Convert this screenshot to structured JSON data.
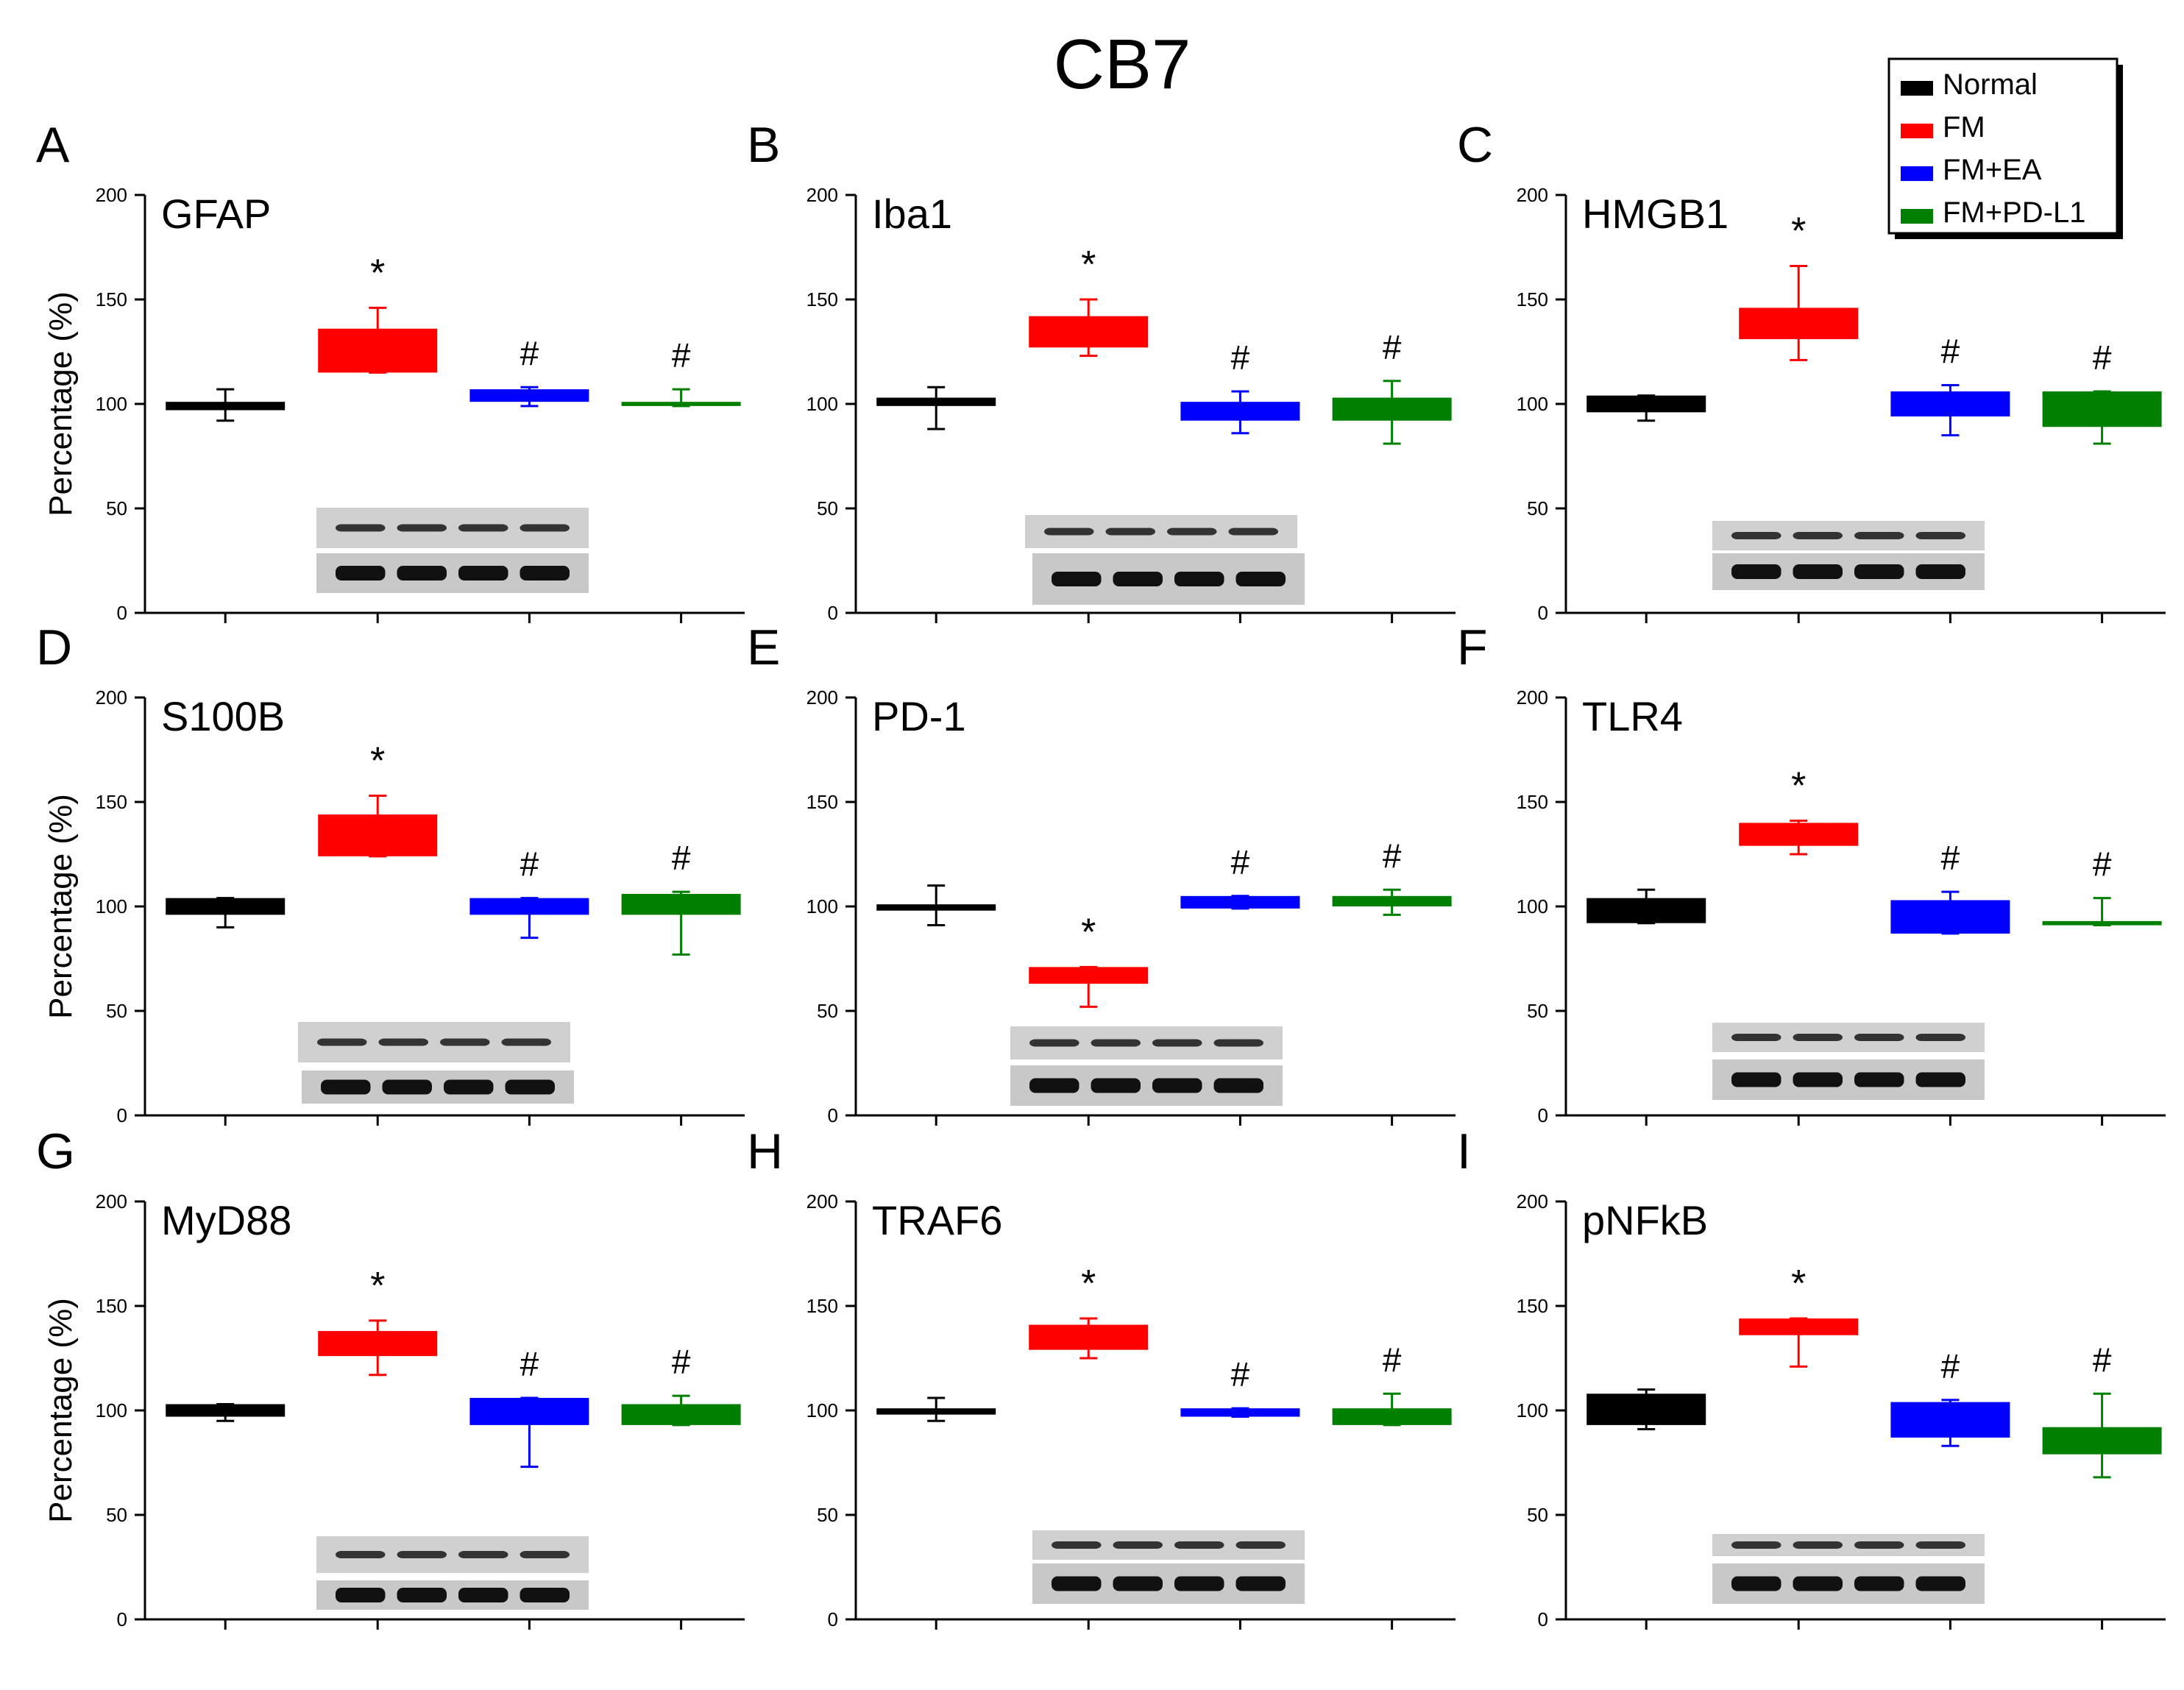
{
  "title": "CB7",
  "legend": {
    "placement": "top-right",
    "entries": [
      {
        "label": "Normal",
        "color": "#000000"
      },
      {
        "label": "FM",
        "color": "#ff0000"
      },
      {
        "label": "FM+EA",
        "color": "#0000ff"
      },
      {
        "label": "FM+PD-L1",
        "color": "#008000"
      }
    ]
  },
  "chart_data": [
    {
      "panel": "A",
      "type": "bar",
      "title": "GFAP",
      "ylabel": "Percentage (%)",
      "ylim": [
        0,
        200
      ],
      "yticks": [
        0,
        50,
        100,
        150,
        200
      ],
      "categories": [
        "Normal",
        "FM",
        "FM+EA",
        "FM+PD-L1"
      ],
      "values": [
        100,
        126,
        104,
        100
      ],
      "boxes": [
        [
          97,
          101
        ],
        [
          115,
          136
        ],
        [
          101,
          107
        ],
        [
          99,
          101
        ]
      ],
      "error_bars": [
        [
          92,
          107
        ],
        [
          115,
          146
        ],
        [
          99,
          108
        ],
        [
          99,
          107
        ]
      ],
      "markers": [
        "",
        "*",
        "#",
        "#"
      ]
    },
    {
      "panel": "B",
      "type": "bar",
      "title": "Iba1",
      "ylabel": "",
      "ylim": [
        0,
        200
      ],
      "yticks": [
        0,
        50,
        100,
        150,
        200
      ],
      "categories": [
        "Normal",
        "FM",
        "FM+EA",
        "FM+PD-L1"
      ],
      "values": [
        101,
        135,
        97,
        98
      ],
      "boxes": [
        [
          99,
          103
        ],
        [
          127,
          142
        ],
        [
          92,
          101
        ],
        [
          92,
          103
        ]
      ],
      "error_bars": [
        [
          88,
          108
        ],
        [
          123,
          150
        ],
        [
          86,
          106
        ],
        [
          81,
          111
        ]
      ],
      "markers": [
        "",
        "*",
        "#",
        "#"
      ]
    },
    {
      "panel": "C",
      "type": "bar",
      "title": "HMGB1",
      "ylabel": "",
      "ylim": [
        0,
        200
      ],
      "yticks": [
        0,
        50,
        100,
        150,
        200
      ],
      "categories": [
        "Normal",
        "FM",
        "FM+EA",
        "FM+PD-L1"
      ],
      "values": [
        100,
        139,
        100,
        98
      ],
      "boxes": [
        [
          96,
          104
        ],
        [
          131,
          146
        ],
        [
          94,
          106
        ],
        [
          89,
          106
        ]
      ],
      "error_bars": [
        [
          92,
          104
        ],
        [
          121,
          166
        ],
        [
          85,
          109
        ],
        [
          81,
          106
        ]
      ],
      "markers": [
        "",
        "*",
        "#",
        "#"
      ]
    },
    {
      "panel": "D",
      "type": "bar",
      "title": "S100B",
      "ylabel": "Percentage (%)",
      "ylim": [
        0,
        200
      ],
      "yticks": [
        0,
        50,
        100,
        150,
        200
      ],
      "categories": [
        "Normal",
        "FM",
        "FM+EA",
        "FM+PD-L1"
      ],
      "values": [
        100,
        134,
        100,
        101
      ],
      "boxes": [
        [
          96,
          104
        ],
        [
          124,
          144
        ],
        [
          96,
          104
        ],
        [
          96,
          106
        ]
      ],
      "error_bars": [
        [
          90,
          104
        ],
        [
          124,
          153
        ],
        [
          85,
          104
        ],
        [
          77,
          107
        ]
      ],
      "markers": [
        "",
        "*",
        "#",
        "#"
      ]
    },
    {
      "panel": "E",
      "type": "bar",
      "title": "PD-1",
      "ylabel": "",
      "ylim": [
        0,
        200
      ],
      "yticks": [
        0,
        50,
        100,
        150,
        200
      ],
      "categories": [
        "Normal",
        "FM",
        "FM+EA",
        "FM+PD-L1"
      ],
      "values": [
        100,
        67,
        102,
        103
      ],
      "boxes": [
        [
          98,
          101
        ],
        [
          63,
          71
        ],
        [
          99,
          105
        ],
        [
          100,
          105
        ]
      ],
      "error_bars": [
        [
          91,
          110
        ],
        [
          52,
          71
        ],
        [
          99,
          105
        ],
        [
          96,
          108
        ]
      ],
      "markers": [
        "",
        "*",
        "#",
        "#"
      ]
    },
    {
      "panel": "F",
      "type": "bar",
      "title": "TLR4",
      "ylabel": "",
      "ylim": [
        0,
        200
      ],
      "yticks": [
        0,
        50,
        100,
        150,
        200
      ],
      "categories": [
        "Normal",
        "FM",
        "FM+EA",
        "FM+PD-L1"
      ],
      "values": [
        99,
        135,
        95,
        92
      ],
      "boxes": [
        [
          92,
          104
        ],
        [
          129,
          140
        ],
        [
          87,
          103
        ],
        [
          91,
          93
        ]
      ],
      "error_bars": [
        [
          92,
          108
        ],
        [
          125,
          141
        ],
        [
          87,
          107
        ],
        [
          91,
          104
        ]
      ],
      "markers": [
        "",
        "*",
        "#",
        "#"
      ]
    },
    {
      "panel": "G",
      "type": "bar",
      "title": "MyD88",
      "ylabel": "Percentage (%)",
      "ylim": [
        0,
        200
      ],
      "yticks": [
        0,
        50,
        100,
        150,
        200
      ],
      "categories": [
        "Normal",
        "FM",
        "FM+EA",
        "FM+PD-L1"
      ],
      "values": [
        100,
        132,
        100,
        99
      ],
      "boxes": [
        [
          97,
          103
        ],
        [
          126,
          138
        ],
        [
          93,
          106
        ],
        [
          93,
          103
        ]
      ],
      "error_bars": [
        [
          95,
          103
        ],
        [
          117,
          143
        ],
        [
          73,
          106
        ],
        [
          93,
          107
        ]
      ],
      "markers": [
        "",
        "*",
        "#",
        "#"
      ]
    },
    {
      "panel": "H",
      "type": "bar",
      "title": "TRAF6",
      "ylabel": "",
      "ylim": [
        0,
        200
      ],
      "yticks": [
        0,
        50,
        100,
        150,
        200
      ],
      "categories": [
        "Normal",
        "FM",
        "FM+EA",
        "FM+PD-L1"
      ],
      "values": [
        100,
        135,
        99,
        97
      ],
      "boxes": [
        [
          98,
          101
        ],
        [
          129,
          141
        ],
        [
          97,
          101
        ],
        [
          93,
          101
        ]
      ],
      "error_bars": [
        [
          95,
          106
        ],
        [
          125,
          144
        ],
        [
          97,
          101
        ],
        [
          93,
          108
        ]
      ],
      "markers": [
        "",
        "*",
        "#",
        "#"
      ]
    },
    {
      "panel": "I",
      "type": "bar",
      "title": "pNFkB",
      "ylabel": "",
      "ylim": [
        0,
        200
      ],
      "yticks": [
        0,
        50,
        100,
        150,
        200
      ],
      "categories": [
        "Normal",
        "FM",
        "FM+EA",
        "FM+PD-L1"
      ],
      "values": [
        101,
        140,
        95,
        87
      ],
      "boxes": [
        [
          93,
          108
        ],
        [
          136,
          144
        ],
        [
          87,
          104
        ],
        [
          79,
          92
        ]
      ],
      "error_bars": [
        [
          91,
          110
        ],
        [
          121,
          144
        ],
        [
          83,
          105
        ],
        [
          68,
          108
        ]
      ],
      "markers": [
        "",
        "*",
        "#",
        "#"
      ]
    }
  ]
}
